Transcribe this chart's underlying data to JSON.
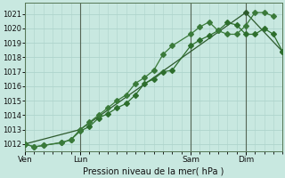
{
  "bg_color": "#c8e8e0",
  "grid_color": "#aed4cc",
  "line_color1": "#2d5a2d",
  "line_color2": "#2d6e2d",
  "line_color3": "#3a7a3a",
  "xlabel": "Pression niveau de la mer( hPa )",
  "ylim": [
    1011.5,
    1021.8
  ],
  "yticks": [
    1012,
    1013,
    1014,
    1015,
    1016,
    1017,
    1018,
    1019,
    1020,
    1021
  ],
  "xtick_labels": [
    "Ven",
    "Lun",
    "Sam",
    "Dim"
  ],
  "xtick_pos": [
    0,
    24,
    72,
    96
  ],
  "xlim": [
    0,
    112
  ],
  "vline_pos": [
    0,
    24,
    72,
    96
  ],
  "series1_x": [
    0,
    4,
    8,
    16,
    20,
    24,
    28,
    32,
    36,
    40,
    44,
    48,
    52,
    56,
    60,
    64,
    72,
    76,
    80,
    84,
    88,
    92,
    96,
    100,
    104,
    108,
    112
  ],
  "series1_y": [
    1012.0,
    1011.8,
    1011.9,
    1012.1,
    1012.3,
    1012.9,
    1013.2,
    1013.8,
    1014.1,
    1014.5,
    1014.8,
    1015.4,
    1016.2,
    1016.5,
    1017.0,
    1017.1,
    1018.8,
    1019.2,
    1019.5,
    1019.85,
    1020.4,
    1020.25,
    1019.6,
    1019.6,
    1020.0,
    1019.6,
    1018.4
  ],
  "series2_x": [
    0,
    4,
    8,
    16,
    20,
    24,
    28,
    32,
    36,
    40,
    44,
    48,
    52,
    56,
    60,
    64,
    72,
    76,
    80,
    84,
    88,
    92,
    96,
    100,
    104,
    108
  ],
  "series2_y": [
    1012.0,
    1011.8,
    1011.9,
    1012.1,
    1012.3,
    1013.0,
    1013.5,
    1014.0,
    1014.5,
    1015.0,
    1015.4,
    1016.2,
    1016.6,
    1017.1,
    1018.2,
    1018.8,
    1019.6,
    1020.1,
    1020.45,
    1019.85,
    1019.6,
    1019.6,
    1020.2,
    1021.1,
    1021.1,
    1020.85
  ],
  "series3_x": [
    0,
    24,
    96,
    112
  ],
  "series3_y": [
    1012.0,
    1013.0,
    1021.1,
    1018.4
  ],
  "n_points": 27
}
